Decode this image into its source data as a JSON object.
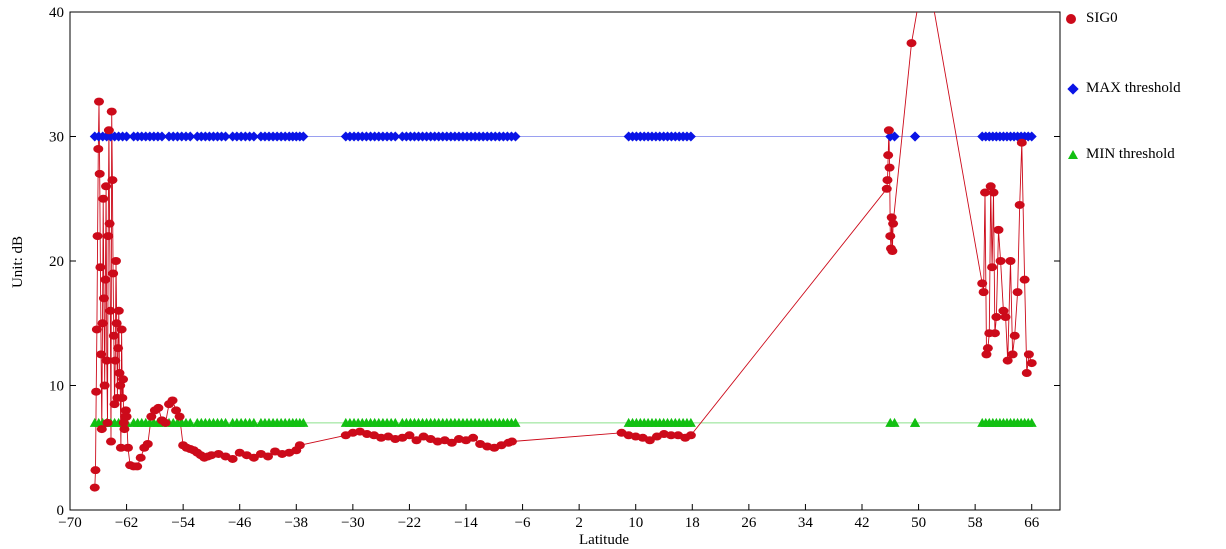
{
  "chart_data": {
    "type": "scatter",
    "xlabel": "Latitude",
    "ylabel": "Unit: dB",
    "xlim": [
      -70,
      70
    ],
    "ylim": [
      0,
      40
    ],
    "xticks": [
      -70,
      -62,
      -54,
      -46,
      -38,
      -30,
      -22,
      -14,
      -6,
      2,
      10,
      18,
      26,
      34,
      42,
      50,
      58,
      66
    ],
    "yticks": [
      0,
      10,
      20,
      30,
      40
    ],
    "grid": false,
    "legend_position": "right",
    "colors": {
      "sig0": "#cc0a1a",
      "max": "#0a14e6",
      "min": "#12c012",
      "max_line": "#9aa0f0",
      "min_line": "#8ce08c"
    },
    "series": [
      {
        "name": "SIG0",
        "marker": "circle",
        "x": [
          -66.5,
          -66.4,
          -66.3,
          -66.2,
          -66.1,
          -66.0,
          -65.9,
          -65.8,
          -65.7,
          -65.6,
          -65.5,
          -65.4,
          -65.3,
          -65.2,
          -65.1,
          -65.0,
          -64.9,
          -64.8,
          -64.7,
          -64.6,
          -64.5,
          -64.4,
          -64.3,
          -64.2,
          -64.1,
          -64.0,
          -63.9,
          -63.8,
          -63.7,
          -63.6,
          -63.5,
          -63.4,
          -63.3,
          -63.2,
          -63.1,
          -63.0,
          -62.9,
          -62.8,
          -62.7,
          -62.6,
          -62.5,
          -62.4,
          -62.3,
          -62.2,
          -62.1,
          -62.0,
          -61.8,
          -61.5,
          -61.0,
          -60.5,
          -60.0,
          -59.5,
          -59.0,
          -58.5,
          -58.0,
          -57.5,
          -57.0,
          -56.5,
          -56.0,
          -55.5,
          -55.0,
          -54.5,
          -54.0,
          -53.5,
          -53.0,
          -52.5,
          -52.0,
          -51.5,
          -51.0,
          -50.5,
          -50.0,
          -49.0,
          -48.0,
          -47.0,
          -46.0,
          -45.0,
          -44.0,
          -43.0,
          -42.0,
          -41.0,
          -40.0,
          -39.0,
          -38.0,
          -37.5,
          -31.0,
          -30.0,
          -29.0,
          -28.0,
          -27.0,
          -26.0,
          -25.0,
          -24.0,
          -23.0,
          -22.0,
          -21.0,
          -20.0,
          -19.0,
          -18.0,
          -17.0,
          -16.0,
          -15.0,
          -14.0,
          -13.0,
          -12.0,
          -11.0,
          -10.0,
          -9.0,
          -8.0,
          -7.5,
          8.0,
          9.0,
          10.0,
          11.0,
          12.0,
          13.0,
          14.0,
          15.0,
          16.0,
          17.0,
          17.8,
          45.5,
          45.6,
          45.7,
          45.8,
          45.9,
          46.0,
          46.1,
          46.2,
          46.3,
          46.4,
          49.0,
          51.0,
          59.0,
          59.2,
          59.4,
          59.6,
          59.8,
          60.0,
          60.2,
          60.4,
          60.6,
          60.8,
          61.0,
          61.3,
          61.6,
          62.0,
          62.3,
          62.6,
          63.0,
          63.3,
          63.6,
          64.0,
          64.3,
          64.6,
          65.0,
          65.3,
          65.6,
          66.0
        ],
        "y": [
          1.8,
          3.2,
          9.5,
          14.5,
          22.0,
          29.0,
          32.8,
          27.0,
          19.5,
          12.5,
          6.5,
          15.0,
          25.0,
          17.0,
          10.0,
          18.5,
          26.0,
          12.0,
          7.0,
          22.0,
          30.5,
          23.0,
          16.0,
          5.5,
          32.0,
          26.5,
          19.0,
          14.0,
          8.5,
          12.0,
          20.0,
          15.0,
          9.0,
          13.0,
          16.0,
          11.0,
          10.0,
          5.0,
          14.5,
          9.0,
          10.5,
          7.0,
          6.5,
          7.5,
          8.0,
          7.5,
          5.0,
          3.6,
          3.5,
          3.5,
          4.2,
          5.0,
          5.3,
          7.5,
          8.0,
          8.2,
          7.2,
          7.0,
          8.5,
          8.8,
          8.0,
          7.5,
          5.2,
          5.0,
          4.9,
          4.8,
          4.6,
          4.4,
          4.2,
          4.3,
          4.4,
          4.5,
          4.3,
          4.1,
          4.6,
          4.4,
          4.2,
          4.5,
          4.3,
          4.7,
          4.5,
          4.6,
          4.8,
          5.2,
          6.0,
          6.2,
          6.3,
          6.1,
          6.0,
          5.8,
          5.9,
          5.7,
          5.8,
          6.0,
          5.6,
          5.9,
          5.7,
          5.5,
          5.6,
          5.4,
          5.7,
          5.6,
          5.8,
          5.3,
          5.1,
          5.0,
          5.2,
          5.4,
          5.5,
          6.2,
          6.0,
          5.9,
          5.8,
          5.6,
          5.9,
          6.1,
          6.0,
          6.0,
          5.8,
          6.0,
          25.8,
          26.5,
          28.5,
          30.5,
          27.5,
          22.0,
          21.0,
          23.5,
          20.8,
          23.0,
          37.5,
          44.0,
          18.2,
          17.5,
          25.5,
          12.5,
          13.0,
          14.2,
          26.0,
          19.5,
          25.5,
          14.2,
          15.5,
          22.5,
          20.0,
          16.0,
          15.5,
          12.0,
          20.0,
          12.5,
          14.0,
          17.5,
          24.5,
          29.5,
          18.5,
          11.0,
          12.5,
          11.8
        ]
      },
      {
        "name": "MAX threshold",
        "marker": "diamond",
        "value": 30,
        "segments": [
          [
            -66.5,
            -62.0
          ],
          [
            -61.0,
            -57.0
          ],
          [
            -56.0,
            -53.0
          ],
          [
            -52.0,
            -48.0
          ],
          [
            -47.0,
            -44.0
          ],
          [
            -43.0,
            -39.0
          ],
          [
            -38.5,
            -37.0
          ],
          [
            -31.0,
            -24.0
          ],
          [
            -23.0,
            -7.0
          ],
          [
            9.0,
            17.8
          ],
          [
            46.0,
            46.6
          ],
          [
            49.5,
            49.5
          ],
          [
            59.0,
            60.5
          ],
          [
            61.0,
            62.5
          ],
          [
            63.0,
            64.0
          ],
          [
            64.5,
            66.0
          ]
        ]
      },
      {
        "name": "MIN threshold",
        "marker": "triangle",
        "value": 7,
        "segments": [
          [
            -66.5,
            -62.0
          ],
          [
            -61.0,
            -57.0
          ],
          [
            -56.0,
            -53.0
          ],
          [
            -52.0,
            -48.0
          ],
          [
            -47.0,
            -44.0
          ],
          [
            -43.0,
            -39.0
          ],
          [
            -38.5,
            -37.0
          ],
          [
            -31.0,
            -24.0
          ],
          [
            -23.0,
            -7.0
          ],
          [
            9.0,
            17.8
          ],
          [
            46.0,
            46.6
          ],
          [
            49.5,
            49.5
          ],
          [
            59.0,
            60.5
          ],
          [
            61.0,
            62.5
          ],
          [
            63.0,
            64.0
          ],
          [
            64.5,
            66.0
          ]
        ]
      }
    ]
  }
}
